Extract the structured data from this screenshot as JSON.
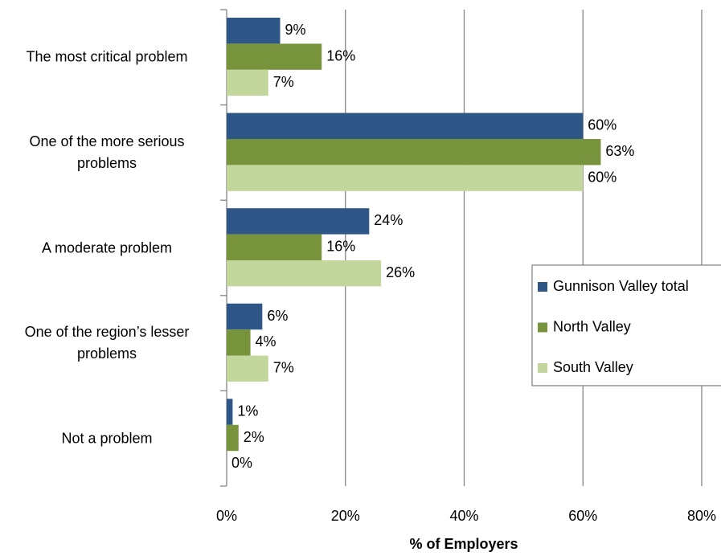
{
  "chart_data": {
    "type": "bar",
    "orientation": "horizontal",
    "categories": [
      "The most critical problem",
      "One of the more serious problems",
      "A moderate problem",
      "One of the region’s lesser problems",
      "Not a problem"
    ],
    "series": [
      {
        "name": "Gunnison Valley total",
        "color": "#2e5686",
        "values": [
          9,
          60,
          24,
          6,
          1
        ],
        "value_labels": [
          "9%",
          "60%",
          "24%",
          "6%",
          "1%"
        ]
      },
      {
        "name": "North Valley",
        "color": "#77933c",
        "values": [
          16,
          63,
          16,
          4,
          2
        ],
        "value_labels": [
          "16%",
          "63%",
          "16%",
          "4%",
          "2%"
        ]
      },
      {
        "name": "South Valley",
        "color": "#c3d69b",
        "values": [
          7,
          60,
          26,
          7,
          0
        ],
        "value_labels": [
          "7%",
          "60%",
          "26%",
          "7%",
          "0%"
        ]
      }
    ],
    "xlabel": "% of Employers",
    "xlim": [
      0,
      80
    ],
    "xticks": [
      {
        "value": 0,
        "label": "0%"
      },
      {
        "value": 20,
        "label": "20%"
      },
      {
        "value": 40,
        "label": "40%"
      },
      {
        "value": 60,
        "label": "60%"
      },
      {
        "value": 80,
        "label": "80%"
      }
    ],
    "grid": true,
    "legend": "right"
  }
}
